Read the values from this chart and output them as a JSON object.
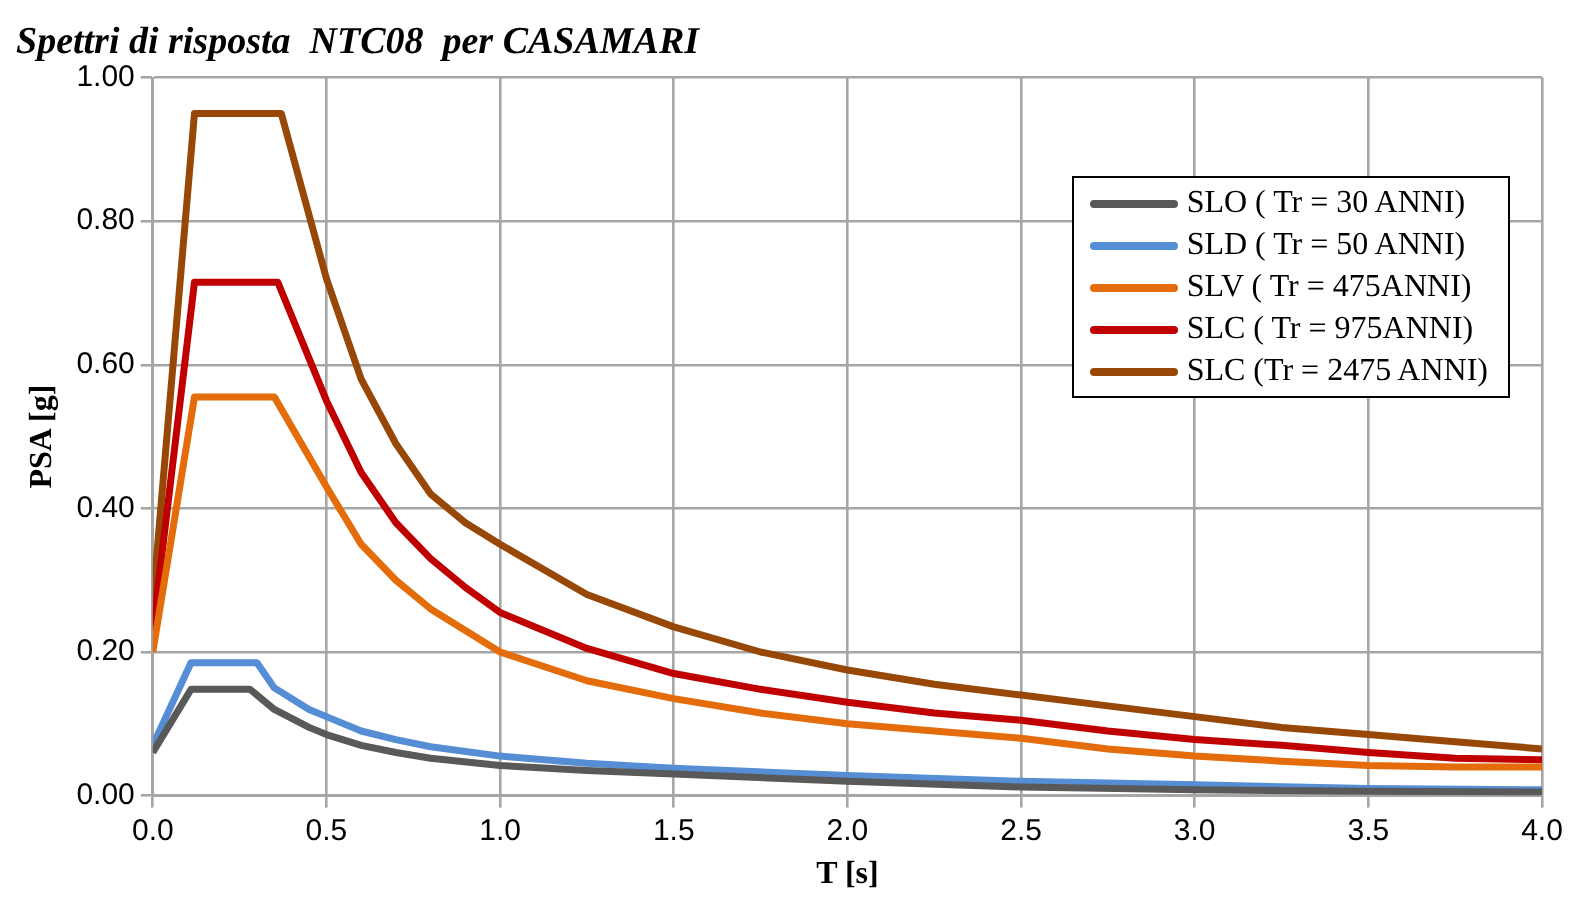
{
  "chart_data": {
    "type": "line",
    "title": "Spettri di risposta  NTC08  per CASAMARI",
    "xlabel": "T [s]",
    "ylabel": "PSA [g]",
    "xlim": [
      0,
      4
    ],
    "xticks": [
      {
        "value": 0,
        "label": "0.0"
      },
      {
        "value": 0.5,
        "label": "0.5"
      },
      {
        "value": 1,
        "label": "1.0"
      },
      {
        "value": 1.5,
        "label": "1.5"
      },
      {
        "value": 2,
        "label": "2.0"
      },
      {
        "value": 2.5,
        "label": "2.5"
      },
      {
        "value": 3,
        "label": "3.0"
      },
      {
        "value": 3.5,
        "label": "3.5"
      },
      {
        "value": 4,
        "label": "4.0"
      }
    ],
    "ylim": [
      0,
      1
    ],
    "yticks": [
      {
        "value": 0,
        "label": "0.00"
      },
      {
        "value": 0.2,
        "label": "0.20"
      },
      {
        "value": 0.4,
        "label": "0.40"
      },
      {
        "value": 0.6,
        "label": "0.60"
      },
      {
        "value": 0.8,
        "label": "0.80"
      },
      {
        "value": 1,
        "label": "1.00"
      }
    ],
    "grid": true,
    "legend": "top right",
    "marker": "none",
    "line_style": "solid",
    "series": [
      {
        "name": "SLO ( Tr = 30 ANNI)",
        "color": "#595959",
        "x": [
          0,
          0.11,
          0.28,
          0.35,
          0.45,
          0.5,
          0.6,
          0.7,
          0.8,
          1.0,
          1.25,
          1.5,
          2.0,
          2.5,
          3.0,
          3.5,
          4.0
        ],
        "values": [
          0.06,
          0.148,
          0.148,
          0.12,
          0.095,
          0.085,
          0.07,
          0.06,
          0.052,
          0.042,
          0.035,
          0.03,
          0.02,
          0.012,
          0.008,
          0.006,
          0.005
        ]
      },
      {
        "name": "SLD ( Tr = 50 ANNI)",
        "color": "#558ed5",
        "x": [
          0,
          0.11,
          0.3,
          0.35,
          0.45,
          0.5,
          0.6,
          0.7,
          0.8,
          1.0,
          1.25,
          1.5,
          2.0,
          2.5,
          3.0,
          3.5,
          4.0
        ],
        "values": [
          0.07,
          0.185,
          0.185,
          0.15,
          0.12,
          0.11,
          0.09,
          0.078,
          0.068,
          0.055,
          0.045,
          0.038,
          0.028,
          0.02,
          0.015,
          0.01,
          0.008
        ]
      },
      {
        "name": "SLV ( Tr = 475ANNI)",
        "color": "#e46c0a",
        "x": [
          0,
          0.12,
          0.35,
          0.5,
          0.6,
          0.7,
          0.8,
          0.9,
          1.0,
          1.25,
          1.5,
          1.75,
          2.0,
          2.25,
          2.5,
          2.75,
          3.0,
          3.25,
          3.5,
          3.75,
          4.0
        ],
        "values": [
          0.2,
          0.555,
          0.555,
          0.43,
          0.35,
          0.3,
          0.26,
          0.23,
          0.2,
          0.16,
          0.135,
          0.115,
          0.1,
          0.09,
          0.08,
          0.065,
          0.055,
          0.048,
          0.042,
          0.04,
          0.04
        ]
      },
      {
        "name": "SLC ( Tr = 975ANNI)",
        "color": "#c00000",
        "x": [
          0,
          0.12,
          0.36,
          0.5,
          0.6,
          0.7,
          0.8,
          0.9,
          1.0,
          1.25,
          1.5,
          1.75,
          2.0,
          2.25,
          2.5,
          2.75,
          3.0,
          3.25,
          3.5,
          3.75,
          4.0
        ],
        "values": [
          0.23,
          0.715,
          0.715,
          0.55,
          0.45,
          0.38,
          0.33,
          0.29,
          0.255,
          0.205,
          0.17,
          0.148,
          0.13,
          0.115,
          0.105,
          0.09,
          0.078,
          0.07,
          0.06,
          0.052,
          0.05
        ]
      },
      {
        "name": "SLC (Tr = 2475 ANNI)",
        "color": "#974806",
        "x": [
          0,
          0.12,
          0.37,
          0.5,
          0.6,
          0.7,
          0.8,
          0.9,
          1.0,
          1.25,
          1.5,
          1.75,
          2.0,
          2.25,
          2.5,
          2.75,
          3.0,
          3.25,
          3.5,
          3.75,
          4.0
        ],
        "values": [
          0.27,
          0.95,
          0.95,
          0.72,
          0.58,
          0.49,
          0.42,
          0.38,
          0.35,
          0.28,
          0.235,
          0.2,
          0.175,
          0.155,
          0.14,
          0.125,
          0.11,
          0.095,
          0.085,
          0.075,
          0.065
        ]
      }
    ]
  }
}
